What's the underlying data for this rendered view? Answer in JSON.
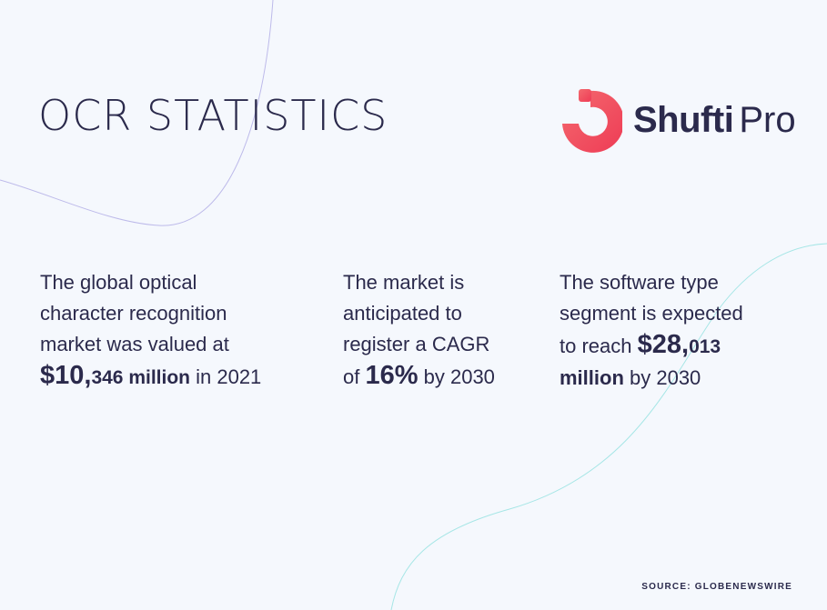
{
  "title": "OCR STATISTICS",
  "logo": {
    "bold_text": "Shufti",
    "light_text": "Pro",
    "mark_color": "#f2505f",
    "icon": "shufti-pro-logo-icon"
  },
  "stats": [
    {
      "line1": "The global optical",
      "line2": "character recognition",
      "line3": "market was valued at",
      "value_big": "$10,",
      "value_mid": "346 million",
      "value_tail": " in 2021"
    },
    {
      "line1": "The market is",
      "line2": "anticipated to",
      "line3": "register a CAGR",
      "prefix": "of ",
      "value_big": "16%",
      "value_tail": " by 2030"
    },
    {
      "line1": "The software type",
      "line2": "segment is expected",
      "line3_text": "to reach ",
      "value_big": "$28,",
      "value_mid": "013",
      "value_bold": "million",
      "value_tail": " by 2030"
    }
  ],
  "source": "SOURCE: GLOBENEWSWIRE",
  "colors": {
    "background": "#f5f8fd",
    "text": "#2b2a4c",
    "accent_red": "#f2505f",
    "curve_purple": "#b9b6e8",
    "curve_teal": "#9fe3e4"
  }
}
